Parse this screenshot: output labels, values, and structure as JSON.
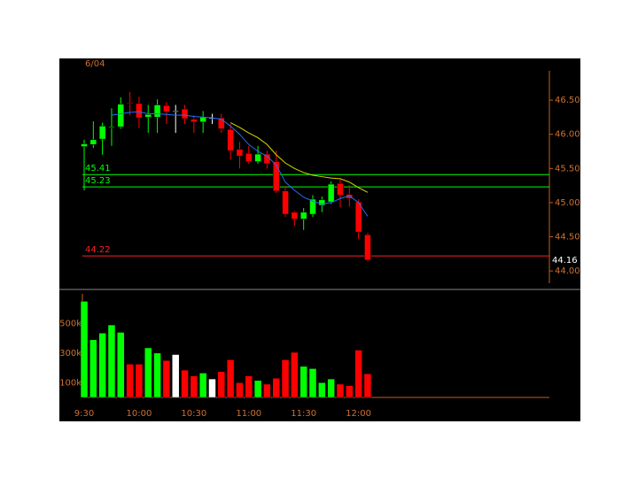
{
  "chart_data": {
    "type": "candlestick",
    "date": "6/04",
    "categories": [
      "9:30",
      null,
      null,
      null,
      null,
      null,
      "10:00",
      null,
      null,
      null,
      null,
      null,
      "10:30",
      null,
      null,
      null,
      null,
      null,
      "11:00",
      null,
      null,
      null,
      null,
      null,
      "11:30",
      null,
      null,
      null,
      null,
      null,
      "12:00",
      null
    ],
    "open": [
      45.82,
      45.85,
      45.93,
      46.1,
      46.11,
      46.46,
      46.45,
      46.25,
      46.25,
      46.42,
      46.34,
      46.37,
      46.22,
      46.18,
      46.24,
      46.24,
      46.07,
      45.78,
      45.72,
      45.6,
      45.71,
      45.6,
      45.17,
      44.86,
      44.76,
      44.83,
      44.96,
      45.01,
      45.28,
      45.12,
      45.01,
      44.53
    ],
    "high": [
      45.92,
      46.19,
      46.17,
      46.38,
      46.54,
      46.62,
      46.55,
      46.43,
      46.51,
      46.47,
      46.43,
      46.43,
      46.28,
      46.34,
      46.3,
      46.3,
      46.15,
      45.89,
      45.83,
      45.83,
      45.76,
      45.76,
      45.24,
      44.88,
      44.92,
      45.11,
      45.09,
      45.31,
      45.34,
      45.26,
      45.05,
      44.56
    ],
    "low": [
      45.18,
      45.8,
      45.7,
      45.83,
      46.08,
      46.28,
      46.09,
      46.02,
      46.02,
      46.15,
      46.02,
      46.15,
      46.02,
      46.02,
      46.15,
      46.02,
      45.63,
      45.5,
      45.57,
      45.57,
      45.5,
      45.14,
      44.79,
      44.66,
      44.6,
      44.79,
      44.86,
      44.98,
      44.93,
      44.94,
      44.47,
      44.14
    ],
    "close": [
      45.86,
      45.92,
      46.12,
      46.11,
      46.44,
      46.45,
      46.24,
      46.29,
      46.43,
      46.33,
      46.34,
      46.23,
      46.18,
      46.25,
      46.24,
      46.08,
      45.76,
      45.68,
      45.6,
      45.71,
      45.57,
      45.17,
      44.83,
      44.76,
      44.86,
      45.05,
      45.04,
      45.27,
      45.11,
      45.06,
      44.57,
      44.16
    ],
    "volume": [
      650000,
      390000,
      435000,
      490000,
      440000,
      225000,
      225000,
      335000,
      300000,
      250000,
      290000,
      185000,
      145000,
      165000,
      125000,
      175000,
      255000,
      100000,
      145000,
      115000,
      90000,
      130000,
      255000,
      305000,
      210000,
      195000,
      100000,
      125000,
      90000,
      80000,
      320000,
      160000
    ],
    "up_color": "#00ff00",
    "down_color": "#ff0000",
    "flat_color": "#ffffff",
    "averages": [
      {
        "color": "#1e6fff",
        "values": [
          null,
          null,
          null,
          46.28,
          46.3,
          46.32,
          46.33,
          46.3,
          46.3,
          46.29,
          46.28,
          46.28,
          46.26,
          46.25,
          46.24,
          46.22,
          46.12,
          46.0,
          45.85,
          45.75,
          45.68,
          45.55,
          45.3,
          45.18,
          45.08,
          45.02,
          44.98,
          45.0,
          45.06,
          45.1,
          45.0,
          44.8
        ]
      },
      {
        "color": "#d8d800",
        "values": [
          null,
          null,
          null,
          null,
          null,
          null,
          null,
          null,
          null,
          null,
          null,
          null,
          null,
          null,
          null,
          null,
          46.17,
          46.1,
          46.02,
          45.95,
          45.85,
          45.7,
          45.58,
          45.5,
          45.44,
          45.4,
          45.38,
          45.36,
          45.35,
          45.3,
          45.22,
          45.15
        ]
      }
    ],
    "levels": [
      {
        "value": 45.41,
        "color": "#00ff00"
      },
      {
        "value": 45.23,
        "color": "#00ff00"
      },
      {
        "value": 44.22,
        "color": "#ff2020"
      }
    ],
    "ylim": [
      43.82,
      47.11
    ],
    "yticks": [
      {
        "value": 46.5,
        "label": "46.50"
      },
      {
        "value": 46,
        "label": "46.00"
      },
      {
        "value": 45.5,
        "label": "45.50"
      },
      {
        "value": 45,
        "label": "45.00"
      },
      {
        "value": 44.5,
        "label": "44.50"
      },
      {
        "value": 44,
        "label": "44.00"
      }
    ],
    "volume_ylim": [
      0,
      700000
    ],
    "volume_yticks": [
      {
        "value": 500000,
        "label": "500k"
      },
      {
        "value": 300000,
        "label": "300k"
      },
      {
        "value": 100000,
        "label": "100k"
      }
    ]
  }
}
